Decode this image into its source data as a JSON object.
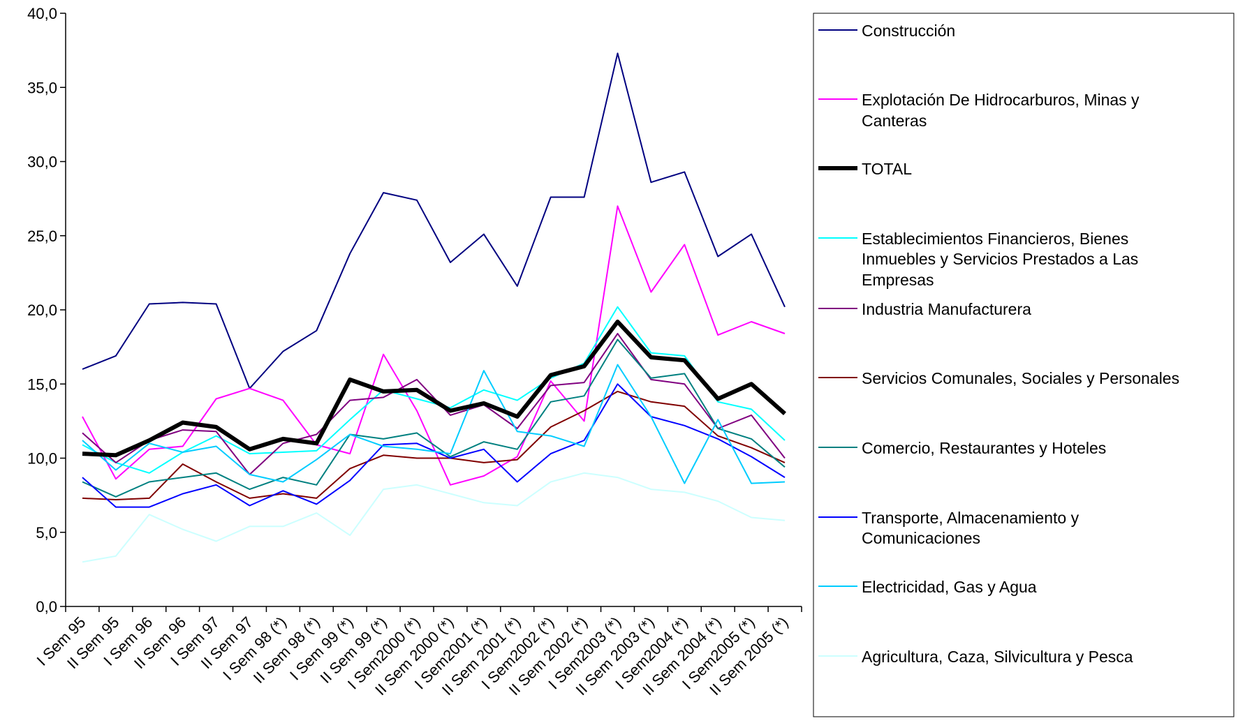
{
  "chart_data": {
    "type": "line",
    "title": "",
    "xlabel": "",
    "ylabel": "",
    "ylim": [
      0,
      40
    ],
    "y_ticks": [
      "0,0",
      "5,0",
      "10,0",
      "15,0",
      "20,0",
      "25,0",
      "30,0",
      "35,0",
      "40,0"
    ],
    "grid": false,
    "legend_position": "right",
    "categories": [
      "I Sem 95",
      "II Sem 95",
      "I Sem 96",
      "II Sem 96",
      "I Sem 97",
      "II Sem 97",
      "I Sem 98 (*)",
      "II Sem 98 (*)",
      "I Sem 99 (*)",
      "II Sem 99 (*)",
      "I Sem2000 (*)",
      "II Sem 2000 (*)",
      "I Sem2001 (*)",
      "II Sem 2001 (*)",
      "I Sem2002 (*)",
      "II Sem 2002 (*)",
      "I Sem2003 (*)",
      "II Sem 2003 (*)",
      "I Sem2004 (*)",
      "II Sem 2004 (*)",
      "I Sem2005 (*)",
      "II Sem 2005 (*)"
    ],
    "series": [
      {
        "name": "Construcción",
        "color": "#000080",
        "values": [
          16.0,
          16.9,
          20.4,
          20.5,
          20.4,
          14.7,
          17.2,
          18.6,
          23.8,
          27.9,
          27.4,
          23.2,
          25.1,
          21.6,
          27.6,
          27.6,
          37.3,
          28.6,
          29.3,
          23.6,
          25.1,
          20.2
        ]
      },
      {
        "name": "Explotación De Hidrocarburos, Minas y Canteras",
        "color": "#ff00ff",
        "values": [
          12.8,
          8.6,
          10.6,
          10.8,
          14.0,
          14.7,
          13.9,
          10.9,
          10.3,
          17.0,
          13.2,
          8.2,
          8.8,
          10.1,
          15.2,
          12.5,
          27.0,
          21.2,
          24.4,
          18.3,
          19.2,
          18.4
        ]
      },
      {
        "name": "TOTAL",
        "color": "#000000",
        "values": [
          10.3,
          10.2,
          11.2,
          12.4,
          12.1,
          10.6,
          11.3,
          11.0,
          15.3,
          14.5,
          14.6,
          13.2,
          13.7,
          12.8,
          15.6,
          16.2,
          19.2,
          16.8,
          16.6,
          14.0,
          15.0,
          13.0
        ]
      },
      {
        "name": "Establecimientos Financieros, Bienes Inmuebles y Servicios Prestados a Las Empresas",
        "color": "#00ffff",
        "values": [
          10.9,
          9.7,
          9.0,
          10.4,
          11.5,
          10.3,
          10.4,
          10.5,
          12.6,
          14.6,
          14.0,
          13.4,
          14.6,
          13.9,
          15.4,
          16.4,
          20.2,
          17.1,
          16.9,
          13.8,
          13.3,
          11.2
        ]
      },
      {
        "name": "Industria Manufacturera",
        "color": "#800080",
        "values": [
          11.7,
          9.7,
          11.2,
          11.9,
          11.8,
          8.9,
          11.0,
          11.6,
          13.9,
          14.1,
          15.3,
          12.9,
          13.6,
          12.0,
          14.9,
          15.1,
          18.4,
          15.3,
          15.0,
          12.0,
          12.9,
          10.0
        ]
      },
      {
        "name": "Servicios Comunales, Sociales y Personales",
        "color": "#800000",
        "values": [
          7.3,
          7.2,
          7.3,
          9.6,
          8.4,
          7.3,
          7.6,
          7.3,
          9.3,
          10.2,
          10.0,
          10.0,
          9.7,
          9.9,
          12.1,
          13.2,
          14.5,
          13.8,
          13.5,
          11.5,
          10.7,
          9.7
        ]
      },
      {
        "name": "Comercio, Restaurantes y Hoteles",
        "color": "#008080",
        "values": [
          8.4,
          7.4,
          8.4,
          8.7,
          9.0,
          7.9,
          8.7,
          8.2,
          11.6,
          11.3,
          11.7,
          10.1,
          11.1,
          10.6,
          13.8,
          14.2,
          18.0,
          15.4,
          15.7,
          12.0,
          11.3,
          9.4
        ]
      },
      {
        "name": "Transporte, Almacenamiento y Comunicaciones",
        "color": "#0000ff",
        "values": [
          8.7,
          6.7,
          6.7,
          7.6,
          8.2,
          6.8,
          7.8,
          6.9,
          8.5,
          10.9,
          11.0,
          10.0,
          10.6,
          8.4,
          10.3,
          11.2,
          15.0,
          12.8,
          12.2,
          11.3,
          10.1,
          8.7
        ]
      },
      {
        "name": "Electricidad, Gas y Agua",
        "color": "#00ccff",
        "values": [
          11.2,
          9.2,
          11.0,
          10.4,
          10.8,
          8.9,
          8.4,
          9.9,
          11.6,
          10.8,
          10.6,
          10.3,
          15.9,
          11.8,
          11.5,
          10.8,
          16.3,
          12.8,
          8.3,
          12.6,
          8.3,
          8.4
        ]
      },
      {
        "name": "Agricultura, Caza, Silvicultura y Pesca",
        "color": "#ccffff",
        "values": [
          3.0,
          3.4,
          6.2,
          5.2,
          4.4,
          5.4,
          5.4,
          6.3,
          4.8,
          7.9,
          8.2,
          7.6,
          7.0,
          6.8,
          8.4,
          9.0,
          8.7,
          7.9,
          7.7,
          7.1,
          6.0,
          5.8
        ]
      }
    ]
  }
}
